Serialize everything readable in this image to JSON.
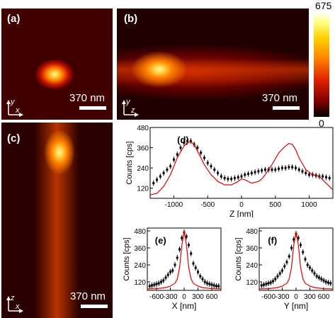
{
  "panels": {
    "a": {
      "label": "(a)",
      "scalebar": "370 nm",
      "axis1": "x",
      "axis2": "y"
    },
    "b": {
      "label": "(b)",
      "scalebar": "370 nm",
      "axis1": "z",
      "axis2": "y"
    },
    "c": {
      "label": "(c)",
      "scalebar": "370 nm",
      "axis1": "x",
      "axis2": "z"
    }
  },
  "colorbar": {
    "max": "675",
    "min": "0"
  },
  "chart_data": [
    {
      "type": "scatter",
      "panel": "(d)",
      "xlabel": "Z [nm]",
      "ylabel": "Counts [cps]",
      "xlim": [
        -1350,
        1350
      ],
      "ylim": [
        60,
        480
      ],
      "xticks": [
        -1000,
        -500,
        0,
        500,
        1000
      ],
      "yticks": [
        120,
        240,
        360,
        480
      ],
      "series": [
        {
          "kind": "points",
          "x": [
            -1300,
            -1250,
            -1200,
            -1150,
            -1100,
            -1050,
            -1000,
            -950,
            -900,
            -850,
            -800,
            -750,
            -700,
            -650,
            -600,
            -550,
            -500,
            -450,
            -400,
            -350,
            -300,
            -250,
            -200,
            -150,
            -100,
            -50,
            0,
            50,
            100,
            150,
            200,
            250,
            300,
            350,
            400,
            450,
            500,
            550,
            600,
            650,
            700,
            750,
            800,
            850,
            900,
            950,
            1000,
            1050,
            1100,
            1150,
            1200,
            1250,
            1300
          ],
          "y": [
            150,
            170,
            190,
            210,
            230,
            250,
            290,
            320,
            360,
            390,
            400,
            400,
            380,
            360,
            330,
            300,
            270,
            250,
            230,
            210,
            190,
            180,
            175,
            175,
            180,
            185,
            190,
            200,
            205,
            210,
            215,
            220,
            225,
            230,
            230,
            230,
            230,
            235,
            240,
            240,
            245,
            245,
            240,
            230,
            220,
            210,
            200,
            200,
            195,
            190,
            190,
            185,
            180
          ]
        },
        {
          "kind": "line",
          "x": [
            -1350,
            -1250,
            -1150,
            -1050,
            -950,
            -850,
            -800,
            -750,
            -700,
            -650,
            -550,
            -450,
            -350,
            -250,
            -150,
            -50,
            0,
            50,
            150,
            250,
            300,
            350,
            450,
            550,
            650,
            700,
            750,
            800,
            850,
            950,
            1050,
            1150,
            1250,
            1350
          ],
          "y": [
            80,
            90,
            130,
            200,
            300,
            370,
            390,
            395,
            380,
            340,
            260,
            200,
            160,
            140,
            140,
            160,
            175,
            170,
            150,
            160,
            175,
            200,
            260,
            330,
            370,
            385,
            380,
            350,
            300,
            230,
            200,
            190,
            150,
            110
          ]
        }
      ]
    },
    {
      "type": "scatter",
      "panel": "(e)",
      "xlabel": "X [nm]",
      "ylabel": "Counts [cps]",
      "xlim": [
        -800,
        800
      ],
      "ylim": [
        60,
        500
      ],
      "xticks": [
        -600,
        -300,
        0,
        300,
        600
      ],
      "yticks": [
        120,
        240,
        360,
        480
      ],
      "series": [
        {
          "kind": "points",
          "x": [
            -750,
            -700,
            -650,
            -600,
            -550,
            -500,
            -450,
            -400,
            -350,
            -300,
            -250,
            -200,
            -150,
            -100,
            -50,
            0,
            50,
            100,
            150,
            200,
            250,
            300,
            350,
            400,
            450,
            500,
            550,
            600,
            650,
            700,
            750
          ],
          "y": [
            90,
            95,
            100,
            105,
            110,
            120,
            130,
            150,
            170,
            190,
            200,
            240,
            290,
            350,
            430,
            470,
            440,
            380,
            320,
            250,
            220,
            190,
            160,
            140,
            120,
            110,
            105,
            100,
            95,
            90,
            90
          ]
        },
        {
          "kind": "line",
          "x": [
            -800,
            -600,
            -400,
            -300,
            -200,
            -150,
            -100,
            -50,
            0,
            50,
            100,
            150,
            200,
            300,
            400,
            600,
            800
          ],
          "y": [
            70,
            72,
            80,
            90,
            110,
            140,
            220,
            380,
            480,
            380,
            220,
            140,
            110,
            90,
            80,
            72,
            70
          ]
        }
      ]
    },
    {
      "type": "scatter",
      "panel": "(f)",
      "xlabel": "Y [nm]",
      "ylabel": "Counts [cps]",
      "xlim": [
        -800,
        800
      ],
      "ylim": [
        60,
        500
      ],
      "xticks": [
        -600,
        -300,
        0,
        300,
        600
      ],
      "yticks": [
        120,
        240,
        360,
        480
      ],
      "series": [
        {
          "kind": "points",
          "x": [
            -750,
            -700,
            -650,
            -600,
            -550,
            -500,
            -450,
            -400,
            -350,
            -300,
            -250,
            -200,
            -150,
            -100,
            -50,
            0,
            50,
            100,
            150,
            200,
            250,
            300,
            350,
            400,
            450,
            500,
            550,
            600,
            650,
            700,
            750
          ],
          "y": [
            95,
            100,
            105,
            110,
            115,
            125,
            140,
            160,
            180,
            200,
            230,
            260,
            300,
            360,
            420,
            460,
            430,
            380,
            330,
            280,
            240,
            220,
            200,
            180,
            160,
            150,
            140,
            130,
            120,
            115,
            110
          ]
        },
        {
          "kind": "line",
          "x": [
            -800,
            -600,
            -400,
            -300,
            -200,
            -150,
            -100,
            -50,
            0,
            50,
            100,
            150,
            200,
            300,
            400,
            600,
            800
          ],
          "y": [
            70,
            72,
            80,
            90,
            110,
            140,
            220,
            380,
            470,
            380,
            220,
            140,
            110,
            90,
            80,
            72,
            70
          ]
        }
      ]
    }
  ]
}
